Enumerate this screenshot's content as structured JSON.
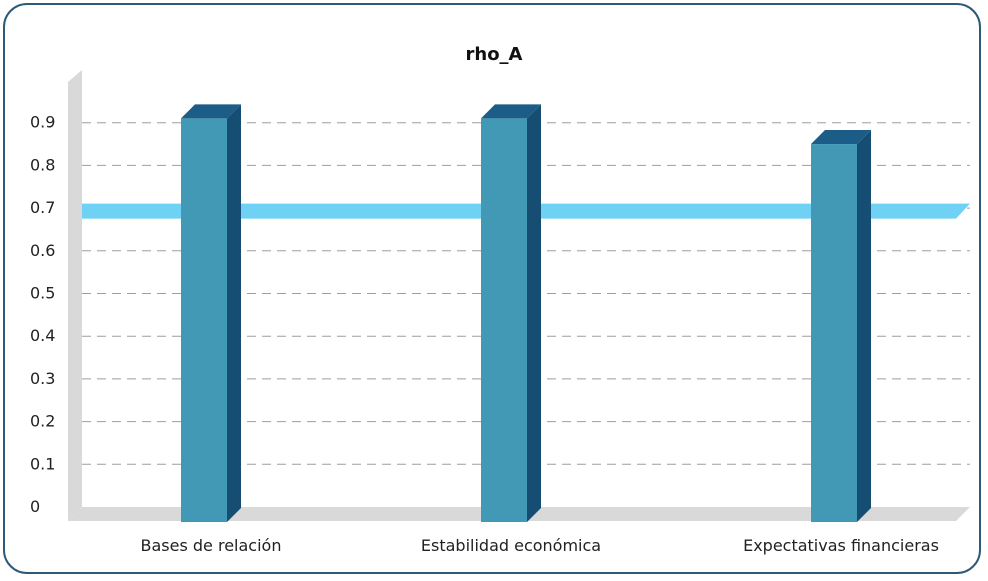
{
  "chart_data": {
    "type": "bar",
    "title": "rho_A",
    "categories": [
      "Bases de relación",
      "Estabilidad económica",
      "Expectativas financieras"
    ],
    "values": [
      0.91,
      0.91,
      0.85
    ],
    "reference_line": 0.68,
    "ylim": [
      0,
      0.9
    ],
    "yticks": [
      "0",
      "0.1",
      "0.2",
      "0.3",
      "0.4",
      "0.5",
      "0.6",
      "0.7",
      "0.8",
      "0.9"
    ],
    "grid": true,
    "colors": {
      "bar_front": "#4199b6",
      "bar_side": "#164d72",
      "bar_top": "#1b5d86",
      "reference_line": "#6fd1f3",
      "wall": "#d9d9d9",
      "grid": "#9e9e9e"
    }
  }
}
